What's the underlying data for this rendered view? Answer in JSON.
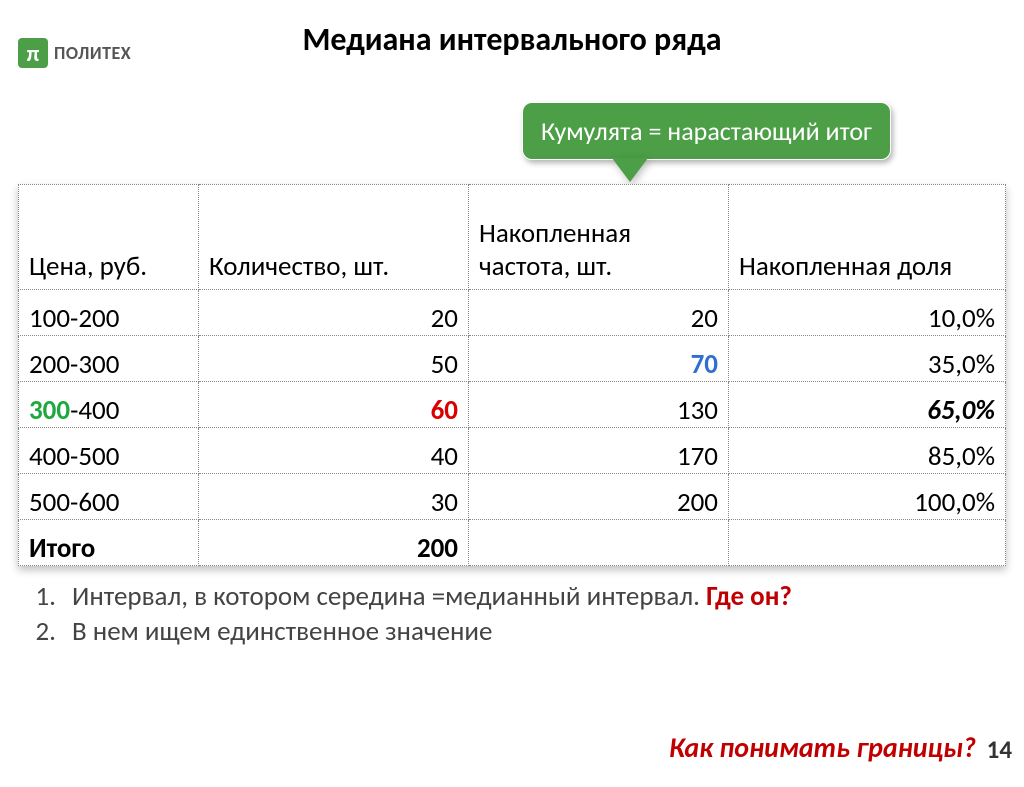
{
  "logo": {
    "symbol": "π",
    "text": "ПОЛИТЕХ"
  },
  "title": "Медиана интервального ряда",
  "callout": "Кумулята = нарастающий итог",
  "table": {
    "headers": [
      "Цена, руб.",
      "Количество, шт.",
      "Накопленная частота, шт.",
      "Накопленная доля"
    ],
    "rows": [
      {
        "c1_a": "100-200",
        "c2": "20",
        "c3": "20",
        "c4": "10,0%"
      },
      {
        "c1_a": "200-300",
        "c2": "50",
        "c3": "70",
        "c4": "35,0%",
        "c3_class": "c-blue"
      },
      {
        "c1_a": "300",
        "c1_b": "-400",
        "c1_a_class": "c-green",
        "c2": "60",
        "c2_class": "c-red",
        "c3": "130",
        "c4": "65,0%",
        "c4_class": "italic-bold"
      },
      {
        "c1_a": "400-500",
        "c2": "40",
        "c3": "170",
        "c4": "85,0%"
      },
      {
        "c1_a": "500-600",
        "c2": "30",
        "c3": "200",
        "c4": "100,0%"
      }
    ],
    "total": {
      "label": "Итого",
      "value": "200"
    }
  },
  "notes": {
    "n1_num": "1.",
    "n1_text_a": "Интервал, в котором середина =медианный интервал. ",
    "n1_text_b": "Где он?",
    "n2_num": "2.",
    "n2_text": "В нем ищем единственное значение"
  },
  "footer_question": "Как понимать границы?",
  "page_number": "14",
  "colors": {
    "brand_green": "#4c9e47",
    "accent_green": "#1ea83e",
    "accent_red": "#d90000",
    "accent_blue": "#2f6fd0",
    "question_red": "#c00000"
  }
}
